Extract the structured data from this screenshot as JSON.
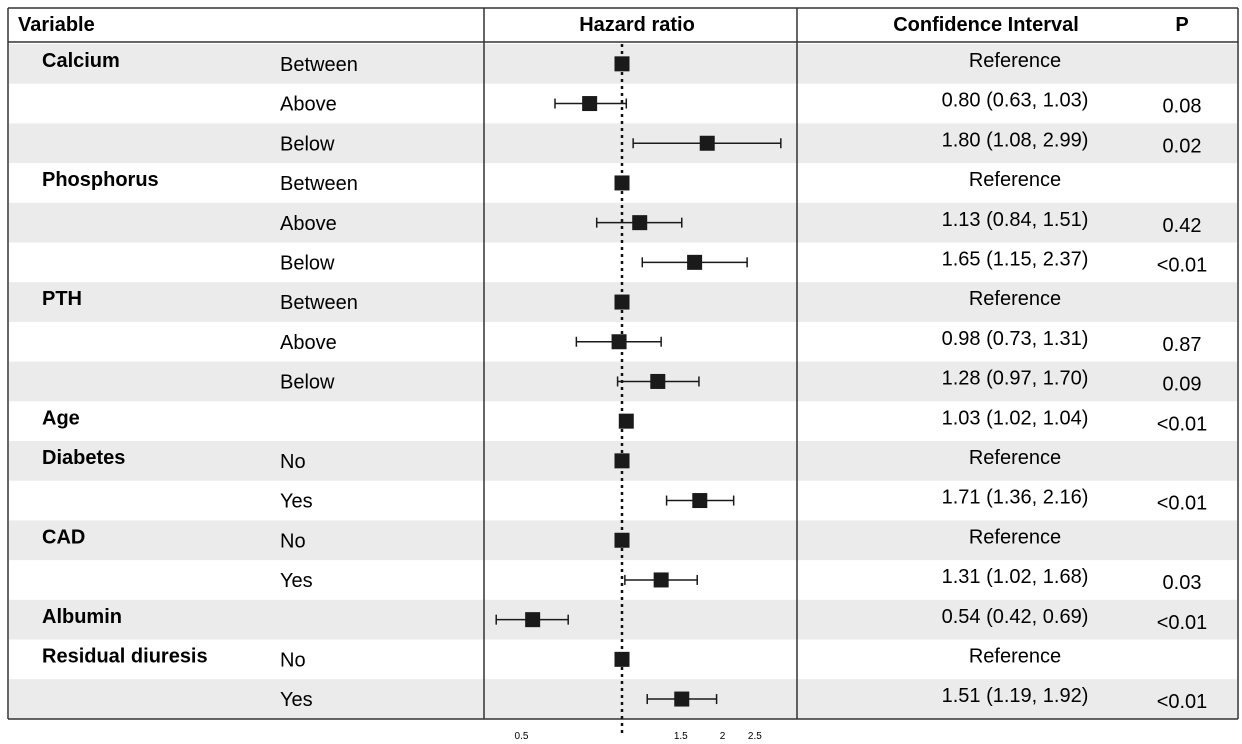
{
  "headers": {
    "variable": "Variable",
    "hazard_ratio": "Hazard ratio",
    "ci": "Confidence Interval",
    "p": "P"
  },
  "chart_data": {
    "type": "forest",
    "x_scale": "log",
    "reference_line": 1,
    "xlim": [
      0.4,
      4.0
    ],
    "x_ticks": [
      "0.5",
      "1.5",
      "2",
      "2.5"
    ],
    "x_tick_values": [
      0.5,
      1.5,
      2,
      2.5
    ],
    "rows": [
      {
        "variable": "Calcium",
        "subgroup": "Between",
        "hr": 1.0,
        "lo": null,
        "hi": null,
        "ci_text": "Reference",
        "p": ""
      },
      {
        "variable": "",
        "subgroup": "Above",
        "hr": 0.8,
        "lo": 0.63,
        "hi": 1.03,
        "ci_text": "0.80 (0.63, 1.03)",
        "p": "0.08"
      },
      {
        "variable": "",
        "subgroup": "Below",
        "hr": 1.8,
        "lo": 1.08,
        "hi": 2.99,
        "ci_text": "1.80 (1.08, 2.99)",
        "p": "0.02"
      },
      {
        "variable": "Phosphorus",
        "subgroup": "Between",
        "hr": 1.0,
        "lo": null,
        "hi": null,
        "ci_text": "Reference",
        "p": ""
      },
      {
        "variable": "",
        "subgroup": "Above",
        "hr": 1.13,
        "lo": 0.84,
        "hi": 1.51,
        "ci_text": "1.13 (0.84, 1.51)",
        "p": "0.42"
      },
      {
        "variable": "",
        "subgroup": "Below",
        "hr": 1.65,
        "lo": 1.15,
        "hi": 2.37,
        "ci_text": "1.65 (1.15, 2.37)",
        "p": "<0.01"
      },
      {
        "variable": "PTH",
        "subgroup": "Between",
        "hr": 1.0,
        "lo": null,
        "hi": null,
        "ci_text": "Reference",
        "p": ""
      },
      {
        "variable": "",
        "subgroup": "Above",
        "hr": 0.98,
        "lo": 0.73,
        "hi": 1.31,
        "ci_text": "0.98 (0.73, 1.31)",
        "p": "0.87"
      },
      {
        "variable": "",
        "subgroup": "Below",
        "hr": 1.28,
        "lo": 0.97,
        "hi": 1.7,
        "ci_text": "1.28 (0.97, 1.70)",
        "p": "0.09"
      },
      {
        "variable": "Age",
        "subgroup": "",
        "hr": 1.03,
        "lo": 1.02,
        "hi": 1.04,
        "ci_text": "1.03 (1.02, 1.04)",
        "p": "<0.01"
      },
      {
        "variable": "Diabetes",
        "subgroup": "No",
        "hr": 1.0,
        "lo": null,
        "hi": null,
        "ci_text": "Reference",
        "p": ""
      },
      {
        "variable": "",
        "subgroup": "Yes",
        "hr": 1.71,
        "lo": 1.36,
        "hi": 2.16,
        "ci_text": "1.71 (1.36, 2.16)",
        "p": "<0.01"
      },
      {
        "variable": "CAD",
        "subgroup": "No",
        "hr": 1.0,
        "lo": null,
        "hi": null,
        "ci_text": "Reference",
        "p": ""
      },
      {
        "variable": "",
        "subgroup": "Yes",
        "hr": 1.31,
        "lo": 1.02,
        "hi": 1.68,
        "ci_text": "1.31 (1.02, 1.68)",
        "p": "0.03"
      },
      {
        "variable": "Albumin",
        "subgroup": "",
        "hr": 0.54,
        "lo": 0.42,
        "hi": 0.69,
        "ci_text": "0.54 (0.42, 0.69)",
        "p": "<0.01"
      },
      {
        "variable": "Residual diuresis",
        "subgroup": "No",
        "hr": 1.0,
        "lo": null,
        "hi": null,
        "ci_text": "Reference",
        "p": ""
      },
      {
        "variable": "",
        "subgroup": "Yes",
        "hr": 1.51,
        "lo": 1.19,
        "hi": 1.92,
        "ci_text": "1.51 (1.19, 1.92)",
        "p": "<0.01"
      }
    ]
  },
  "colors": {
    "stripe": "#ebebeb",
    "ink": "#1a1a1a",
    "border": "#333333"
  }
}
